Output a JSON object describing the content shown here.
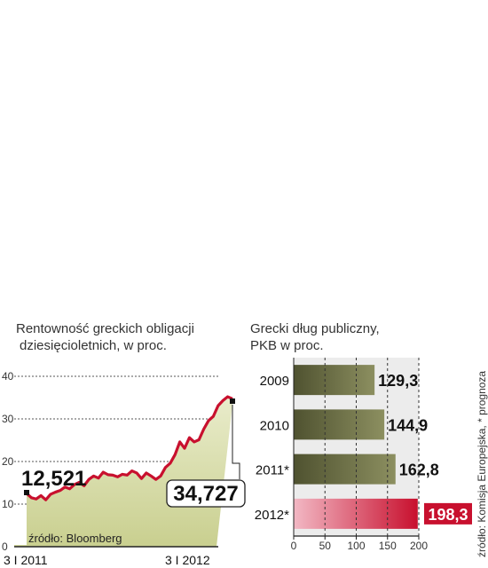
{
  "chart_data": [
    {
      "type": "area",
      "title": "Rentowność greckich obligacji dziesięcioletnich, w proc.",
      "title_lines": [
        "Rentowność greckich obligacji",
        "dziesięcioletnich, w proc."
      ],
      "ylim": [
        0,
        40
      ],
      "yticks": [
        0,
        10,
        20,
        30,
        40
      ],
      "x_tick_labels": [
        "3 I 2011",
        "3 I 2012"
      ],
      "grid": true,
      "series": [
        {
          "values": [
            12.521,
            11.5,
            11.2,
            12.0,
            11.0,
            12.3,
            12.8,
            13.2,
            14.0,
            13.6,
            14.6,
            15.1,
            14.3,
            15.8,
            16.6,
            16.1,
            17.5,
            16.9,
            16.8,
            16.4,
            17.0,
            16.8,
            17.8,
            17.3,
            16.0,
            17.3,
            16.6,
            15.8,
            16.6,
            18.6,
            19.6,
            21.6,
            24.6,
            23.1,
            25.6,
            24.6,
            25.1,
            27.6,
            29.6,
            30.6,
            33.1,
            34.3,
            35.2,
            34.727
          ]
        }
      ],
      "annotations": {
        "start_value": "12,521",
        "end_value": "34,727",
        "source": "źródło: Bloomberg"
      }
    },
    {
      "type": "bar",
      "orientation": "horizontal",
      "title": "Grecki dług publiczny, PKB w proc.",
      "title_lines": [
        "Grecki dług publiczny,",
        "PKB w proc."
      ],
      "categories": [
        "2009",
        "2010",
        "2011*",
        "2012*"
      ],
      "values": [
        129.3,
        144.9,
        162.8,
        198.3
      ],
      "value_labels": [
        "129,3",
        "144,9",
        "162,8",
        "198,3"
      ],
      "xlim": [
        0,
        200
      ],
      "xticks": [
        0,
        50,
        100,
        150,
        200
      ],
      "colors": {
        "bar": "#6e7046",
        "highlight": "#c8102e",
        "area": "#cfd59a",
        "line": "#c8102e"
      },
      "source_note": "źródło: Komisja Europejska, * prognoza"
    }
  ]
}
